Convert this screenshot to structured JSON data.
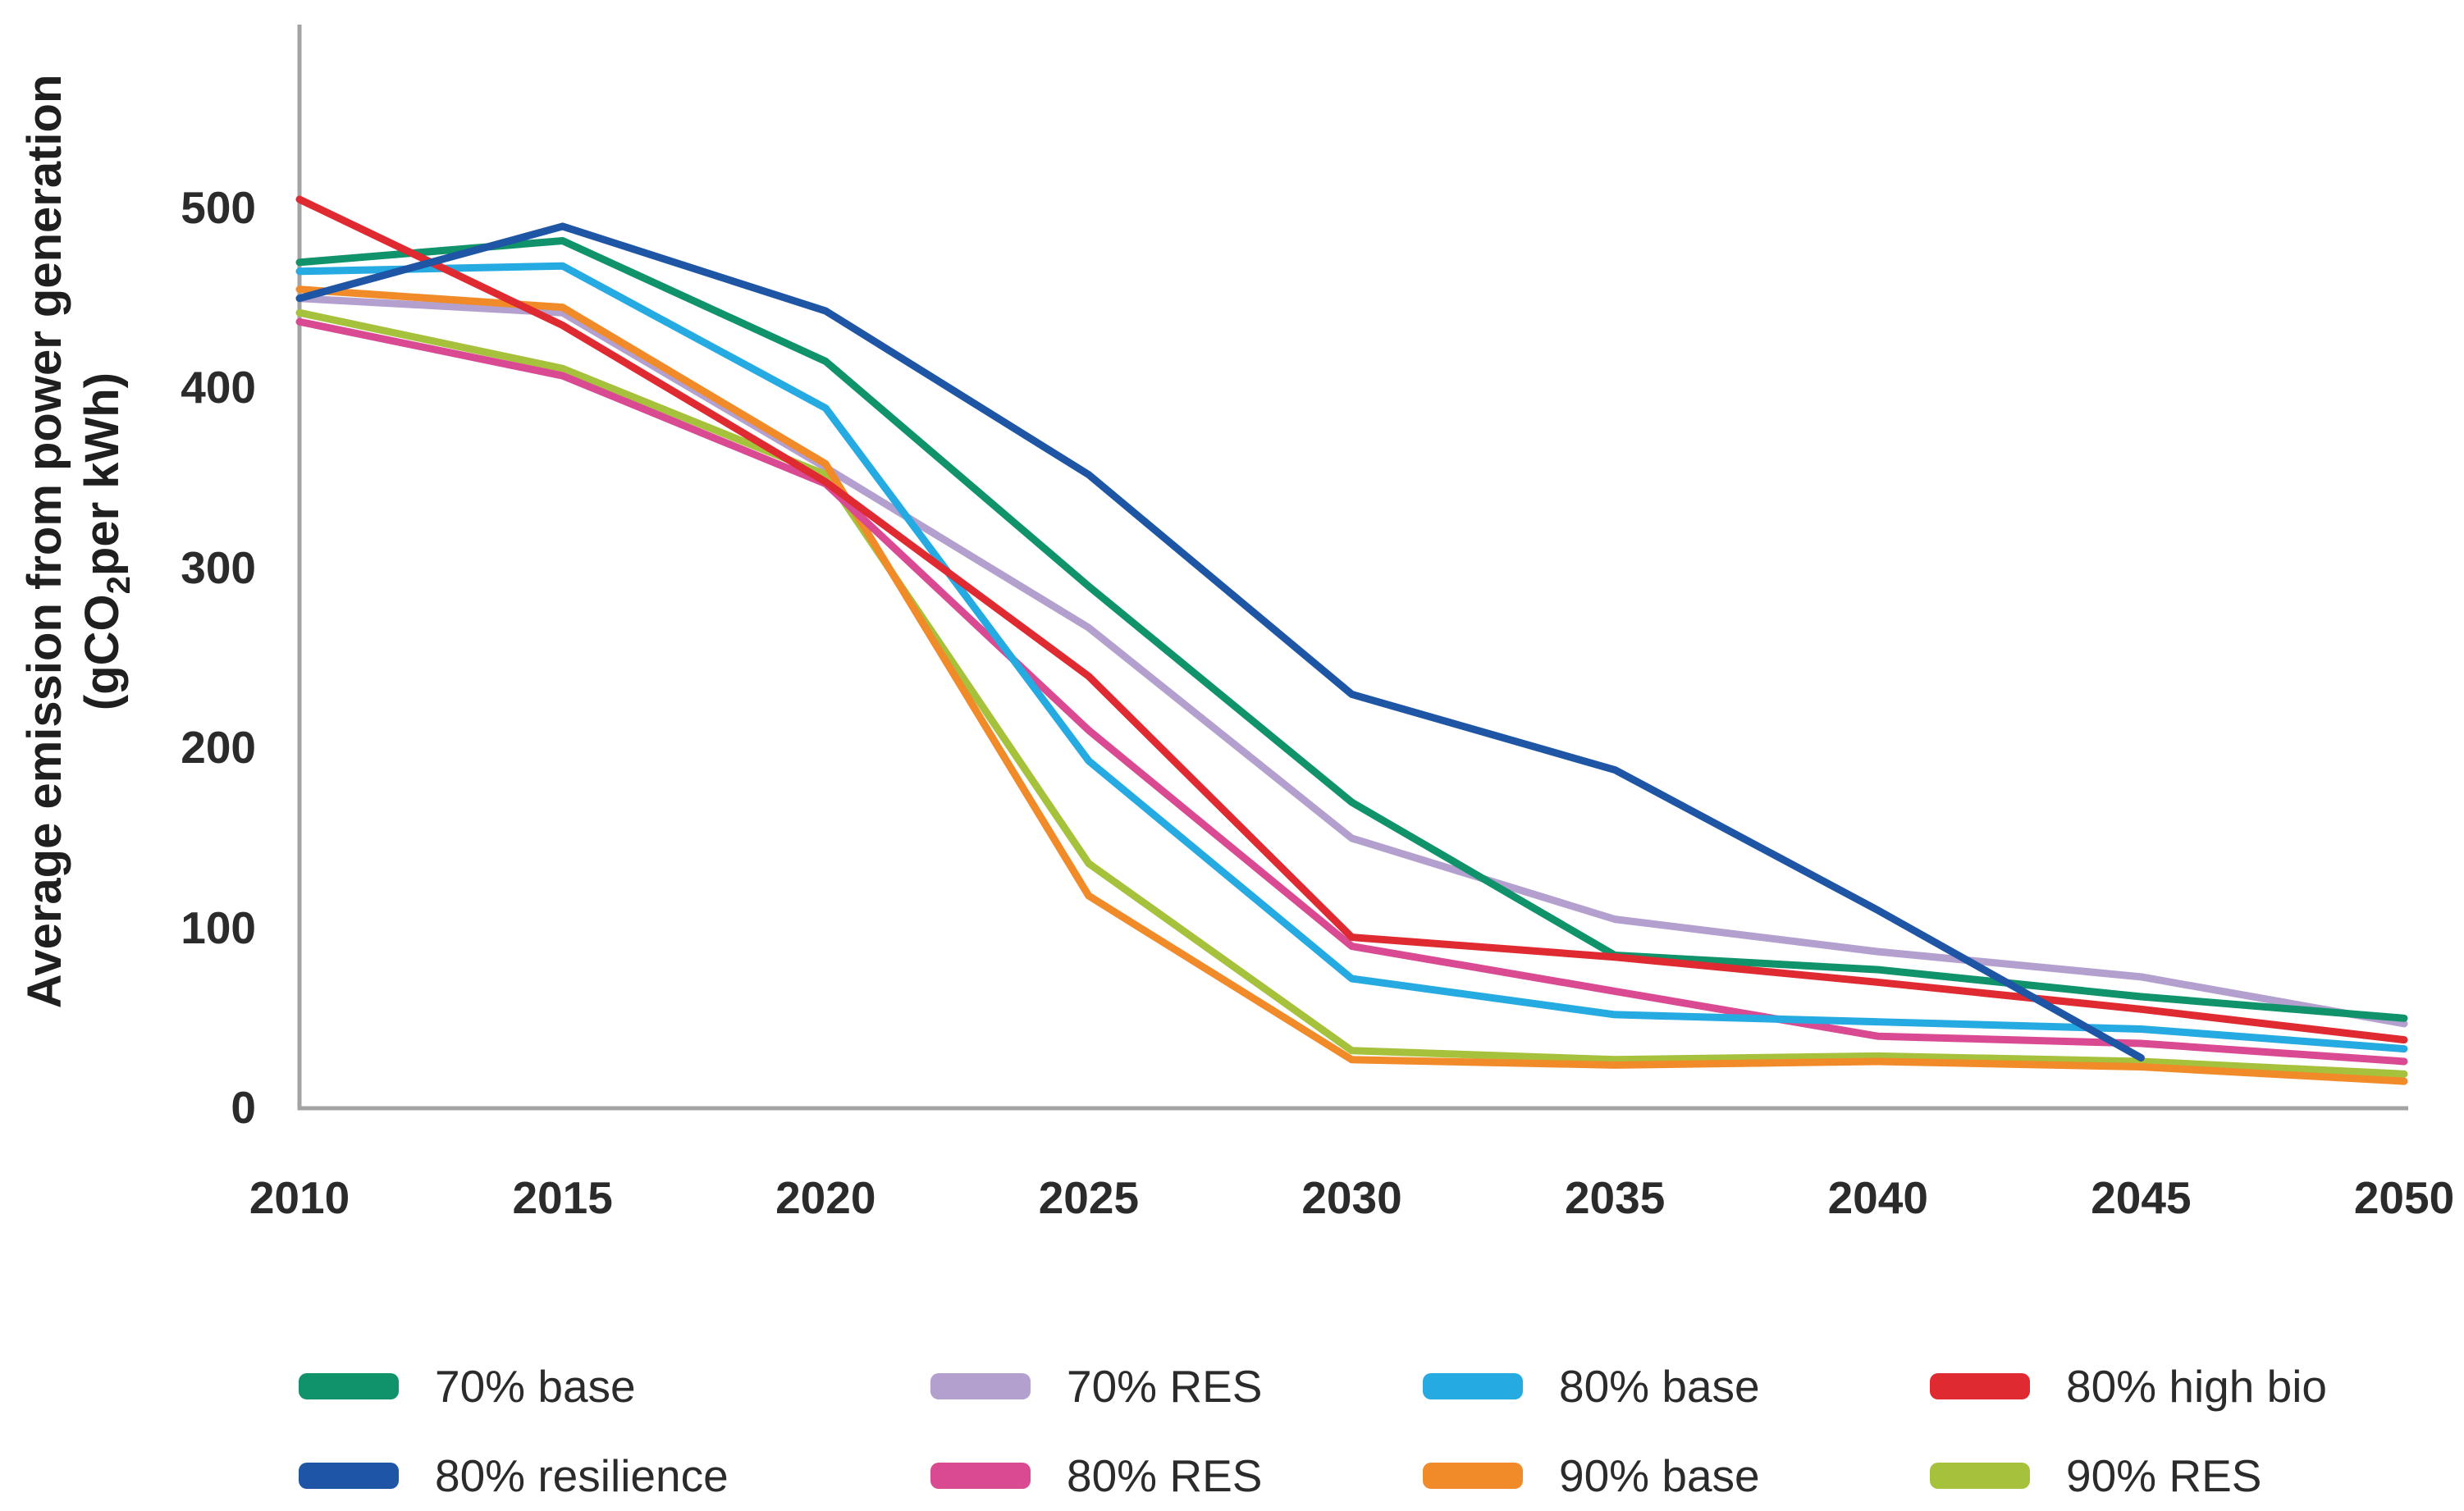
{
  "axis": {
    "y_title_line1": "Average emission from power generation",
    "unit_prefix": "(gCO",
    "unit_sub": "2",
    "unit_suffix": "per kWh)"
  },
  "colors": {
    "axis_line": "#a3a3a3",
    "text": "#2b2b2b"
  },
  "chart_data": {
    "type": "line",
    "title": "",
    "xlabel": "",
    "ylabel": "Average emission from power generation (gCO2 per kWh)",
    "x": [
      2010,
      2015,
      2020,
      2025,
      2030,
      2035,
      2040,
      2045,
      2050
    ],
    "y_ticks": [
      0,
      100,
      200,
      300,
      400,
      500
    ],
    "ylim": [
      0,
      600
    ],
    "grid": false,
    "legend_position": "bottom",
    "series": [
      {
        "name": "70% base",
        "color": "#10926a",
        "values": [
          470,
          482,
          415,
          290,
          170,
          85,
          77,
          62,
          50
        ]
      },
      {
        "name": "70% RES",
        "color": "#b3a0ce",
        "values": [
          450,
          442,
          356,
          267,
          150,
          105,
          87,
          73,
          47
        ]
      },
      {
        "name": "80% base",
        "color": "#25aae1",
        "values": [
          465,
          468,
          389,
          193,
          72,
          52,
          48,
          44,
          33
        ]
      },
      {
        "name": "80% high bio",
        "color": "#e02a31",
        "values": [
          505,
          435,
          348,
          240,
          95,
          84,
          70,
          55,
          38
        ]
      },
      {
        "name": "80% resilience",
        "color": "#1e55a4",
        "values": [
          450,
          490,
          443,
          352,
          230,
          188,
          110,
          28,
          null
        ]
      },
      {
        "name": "80% RES",
        "color": "#d94a93",
        "values": [
          437,
          407,
          347,
          210,
          90,
          65,
          40,
          36,
          26
        ]
      },
      {
        "name": "90% base",
        "color": "#f18a28",
        "values": [
          455,
          445,
          358,
          118,
          27,
          24,
          26,
          23,
          15
        ]
      },
      {
        "name": "90% RES",
        "color": "#a6c23c",
        "values": [
          442,
          411,
          352,
          136,
          32,
          27,
          29,
          26,
          19
        ]
      }
    ]
  }
}
